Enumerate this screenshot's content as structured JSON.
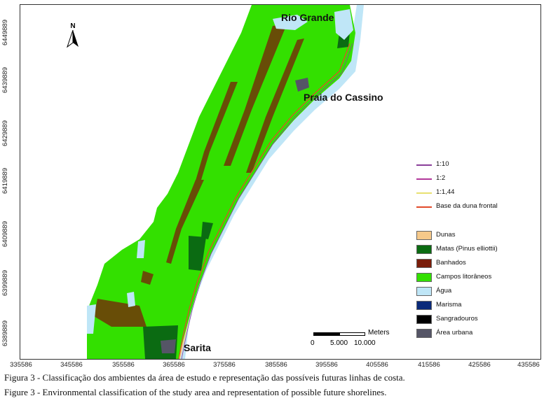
{
  "map": {
    "y_ticks": [
      "6449889",
      "6439889",
      "6429889",
      "6419889",
      "6409889",
      "6399889",
      "6389889"
    ],
    "x_ticks": [
      "335586",
      "345586",
      "355586",
      "365586",
      "375586",
      "385586",
      "395586",
      "405586",
      "415586",
      "425586",
      "435586"
    ],
    "places": {
      "rio_grande": "Rio Grande",
      "praia_do_cassino": "Praia do Cassino",
      "sarita": "Sarita"
    },
    "north_label": "N",
    "scale": {
      "unit": "Meters",
      "labels": [
        "0",
        "5.000",
        "10.000"
      ]
    },
    "colors": {
      "campos": "#33e000",
      "banhados": "#7a1d0a",
      "matas": "#0b6b12",
      "dunas": "#f6c98a",
      "agua": "#bfe6f7",
      "urbana": "#555566"
    }
  },
  "legend": {
    "lines": [
      {
        "label": "1:10",
        "color": "#8a3f9a"
      },
      {
        "label": "1:2",
        "color": "#b2379a"
      },
      {
        "label": "1:1,44",
        "color": "#e8e070"
      },
      {
        "label": "Base da duna frontal",
        "color": "#e24a2a"
      }
    ],
    "classes": [
      {
        "label": "Dunas",
        "color": "#f6c98a"
      },
      {
        "label": "Matas (Pinus elliottii)",
        "color": "#0b6b12"
      },
      {
        "label": "Banhados",
        "color": "#7a1d0a"
      },
      {
        "label": "Campos litorâneos",
        "color": "#33e000"
      },
      {
        "label": "Água",
        "color": "#bfe6f7"
      },
      {
        "label": "Marisma",
        "color": "#0a2a7a"
      },
      {
        "label": "Sangradouros",
        "color": "#000000"
      },
      {
        "label": "Área urbana",
        "color": "#555566"
      }
    ]
  },
  "captions": {
    "pt": "Figura 3 - Classificação dos ambientes da área de estudo e representação das possíveis futuras linhas de costa.",
    "en": "Figure 3 - Environmental classification of the study area and representation of possible future shorelines."
  }
}
